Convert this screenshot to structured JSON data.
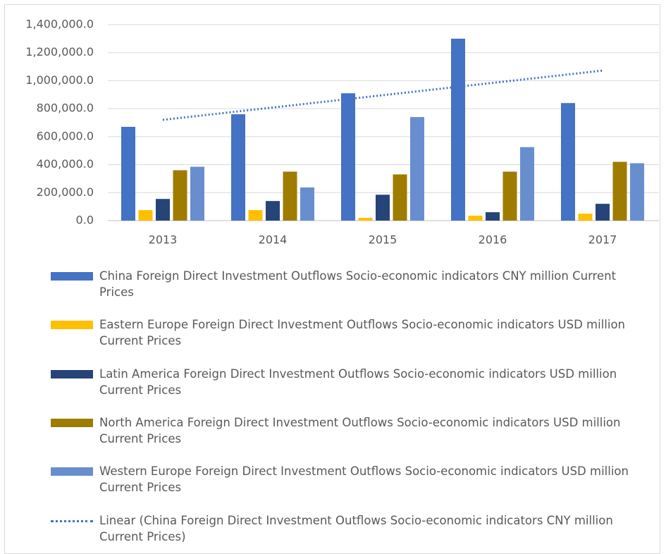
{
  "chart_data": {
    "type": "bar",
    "categories": [
      "2013",
      "2014",
      "2015",
      "2016",
      "2017"
    ],
    "ylim": [
      0,
      1400000
    ],
    "yticks": [
      {
        "value": 0,
        "label": "0.0"
      },
      {
        "value": 200000,
        "label": "200,000.0"
      },
      {
        "value": 400000,
        "label": "400,000.0"
      },
      {
        "value": 600000,
        "label": "600,000.0"
      },
      {
        "value": 800000,
        "label": "800,000.0"
      },
      {
        "value": 1000000,
        "label": "1,000,000.0"
      },
      {
        "value": 1200000,
        "label": "1,200,000.0"
      },
      {
        "value": 1400000,
        "label": "1,400,000.0"
      }
    ],
    "grid": true,
    "legend": "bottom",
    "series": [
      {
        "name": "China Foreign Direct Investment Outflows Socio-economic indicators CNY million Current Prices",
        "color": "#4472c4",
        "values": [
          670000,
          760000,
          910000,
          1300000,
          840000
        ]
      },
      {
        "name": "Eastern Europe Foreign Direct Investment Outflows Socio-economic indicators USD million Current Prices",
        "color": "#ffc000",
        "values": [
          75000,
          75000,
          20000,
          35000,
          50000
        ]
      },
      {
        "name": "Latin America Foreign Direct Investment Outflows Socio-economic indicators USD million Current Prices",
        "color": "#264478",
        "values": [
          155000,
          140000,
          185000,
          60000,
          120000
        ]
      },
      {
        "name": "North America Foreign Direct Investment Outflows Socio-economic indicators USD million Current Prices",
        "color": "#9e7c00",
        "values": [
          360000,
          350000,
          330000,
          350000,
          420000
        ]
      },
      {
        "name": "Western Europe Foreign Direct Investment Outflows Socio-economic indicators USD million Current Prices",
        "color": "#698ed0",
        "values": [
          385000,
          237000,
          740000,
          525000,
          410000
        ]
      },
      {
        "name": "Linear (China Foreign Direct Investment Outflows Socio-economic indicators CNY million Current Prices)",
        "color": "#4472c4",
        "style": "dotted",
        "values": [
          720000,
          808000,
          896000,
          984000,
          1072000
        ]
      }
    ]
  }
}
